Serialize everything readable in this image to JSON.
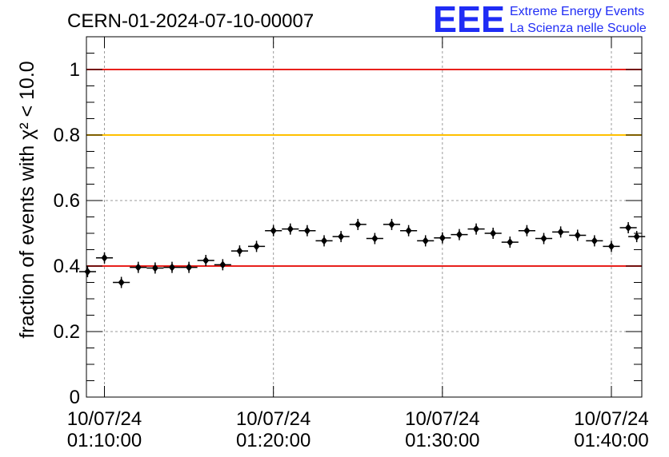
{
  "title": "CERN-01-2024-07-10-00007",
  "logo": {
    "text": "EEE",
    "line1": "Extreme Energy Events",
    "line2": "La Scienza nelle Scuole",
    "color": "#1f2cf5"
  },
  "chart_data": {
    "type": "scatter",
    "title": "CERN-01-2024-07-10-00007",
    "ylabel": "fraction of events with χ² < 10.0",
    "xlabel": "",
    "xlim": [
      "01:08:56",
      "01:41:48"
    ],
    "ylim": [
      0,
      1.1
    ],
    "grid": true,
    "y_ticks": [
      {
        "value": 0,
        "label": "0"
      },
      {
        "value": 0.2,
        "label": "0.2"
      },
      {
        "value": 0.4,
        "label": "0.4"
      },
      {
        "value": 0.6,
        "label": "0.6"
      },
      {
        "value": 0.8,
        "label": "0.8"
      },
      {
        "value": 1,
        "label": "1"
      }
    ],
    "x_ticks": [
      {
        "time": "01:10:00",
        "date_label": "10/07/24",
        "time_label": "01:10:00"
      },
      {
        "time": "01:20:00",
        "date_label": "10/07/24",
        "time_label": "01:20:00"
      },
      {
        "time": "01:30:00",
        "date_label": "10/07/24",
        "time_label": "01:30:00"
      },
      {
        "time": "01:40:00",
        "date_label": "10/07/24",
        "time_label": "01:40:00"
      }
    ],
    "reference_lines": [
      {
        "value": 1.0,
        "color": "#e8201c"
      },
      {
        "value": 0.8,
        "color": "#ffc000"
      },
      {
        "value": 0.4,
        "color": "#e8201c"
      }
    ],
    "series": [
      {
        "color": "#000000",
        "points": [
          {
            "x": "01:09:00",
            "y": 0.383
          },
          {
            "x": "01:10:00",
            "y": 0.425
          },
          {
            "x": "01:11:00",
            "y": 0.35
          },
          {
            "x": "01:12:00",
            "y": 0.396
          },
          {
            "x": "01:13:00",
            "y": 0.394
          },
          {
            "x": "01:14:00",
            "y": 0.396
          },
          {
            "x": "01:15:00",
            "y": 0.396
          },
          {
            "x": "01:16:00",
            "y": 0.417
          },
          {
            "x": "01:17:00",
            "y": 0.404
          },
          {
            "x": "01:18:00",
            "y": 0.446
          },
          {
            "x": "01:19:00",
            "y": 0.46
          },
          {
            "x": "01:20:00",
            "y": 0.508
          },
          {
            "x": "01:21:00",
            "y": 0.513
          },
          {
            "x": "01:22:00",
            "y": 0.508
          },
          {
            "x": "01:23:00",
            "y": 0.477
          },
          {
            "x": "01:24:00",
            "y": 0.49
          },
          {
            "x": "01:25:00",
            "y": 0.527
          },
          {
            "x": "01:26:00",
            "y": 0.484
          },
          {
            "x": "01:27:00",
            "y": 0.527
          },
          {
            "x": "01:28:00",
            "y": 0.508
          },
          {
            "x": "01:29:00",
            "y": 0.477
          },
          {
            "x": "01:30:00",
            "y": 0.486
          },
          {
            "x": "01:31:00",
            "y": 0.496
          },
          {
            "x": "01:32:00",
            "y": 0.513
          },
          {
            "x": "01:33:00",
            "y": 0.5
          },
          {
            "x": "01:34:00",
            "y": 0.473
          },
          {
            "x": "01:35:00",
            "y": 0.508
          },
          {
            "x": "01:36:00",
            "y": 0.484
          },
          {
            "x": "01:37:00",
            "y": 0.504
          },
          {
            "x": "01:38:00",
            "y": 0.494
          },
          {
            "x": "01:39:00",
            "y": 0.477
          },
          {
            "x": "01:40:00",
            "y": 0.46
          },
          {
            "x": "01:41:00",
            "y": 0.517
          },
          {
            "x": "01:41:30",
            "y": 0.49
          }
        ]
      }
    ]
  }
}
